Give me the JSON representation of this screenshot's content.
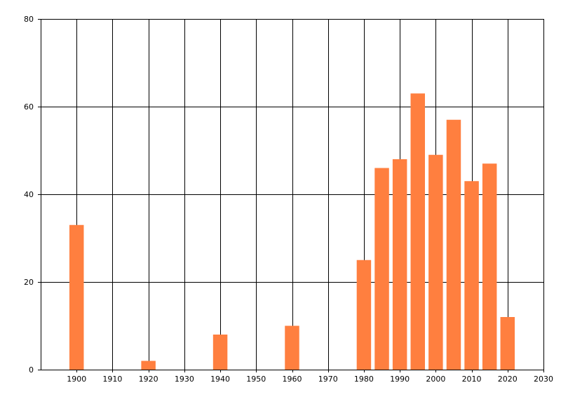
{
  "chart_data": {
    "type": "bar",
    "x": [
      1900,
      1920,
      1940,
      1960,
      1980,
      1985,
      1990,
      1995,
      2000,
      2005,
      2010,
      2015,
      2020
    ],
    "values": [
      33,
      2,
      8,
      10,
      25,
      46,
      48,
      63,
      49,
      57,
      43,
      47,
      12
    ],
    "x_ticks": [
      "1900",
      "1910",
      "1920",
      "1930",
      "1940",
      "1950",
      "1960",
      "1970",
      "1980",
      "1990",
      "2000",
      "2010",
      "2020",
      "2030"
    ],
    "y_ticks": [
      "0",
      "20",
      "40",
      "60",
      "80"
    ],
    "xlim": [
      1890,
      2030
    ],
    "ylim": [
      0,
      80
    ],
    "x_tick_positions": [
      1900,
      1910,
      1920,
      1930,
      1940,
      1950,
      1960,
      1970,
      1980,
      1990,
      2000,
      2010,
      2020,
      2030
    ],
    "y_tick_positions": [
      0,
      20,
      40,
      60,
      80
    ],
    "bar_width_years": 4,
    "grid": true,
    "bar_color": "#FF7F3F",
    "grid_color": "#000000",
    "title": "",
    "xlabel": "",
    "ylabel": ""
  }
}
